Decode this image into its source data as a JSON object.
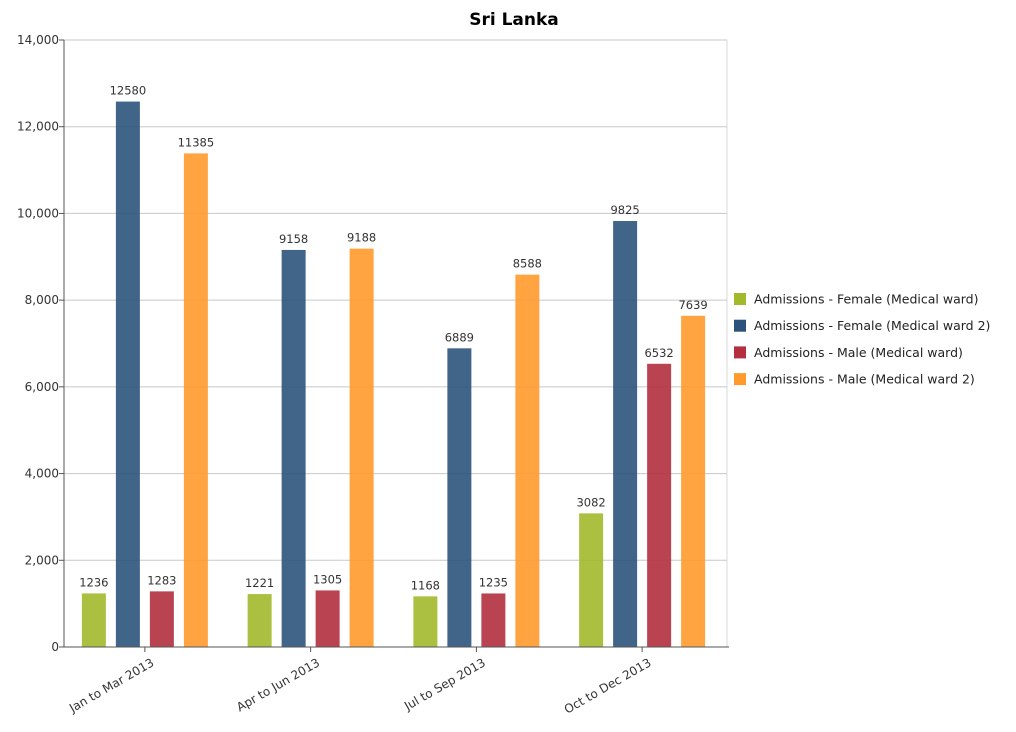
{
  "chart_data": {
    "type": "bar",
    "title": "Sri Lanka",
    "xlabel": "",
    "ylabel": "",
    "ylim": [
      0,
      14000
    ],
    "yticks": [
      0,
      2000,
      4000,
      6000,
      8000,
      10000,
      12000,
      14000
    ],
    "ytick_labels": [
      "0",
      "2,000",
      "4,000",
      "6,000",
      "8,000",
      "10,000",
      "12,000",
      "14,000"
    ],
    "grid": true,
    "legend_position": "right",
    "categories": [
      "Jan to Mar 2013",
      "Apr to Jun 2013",
      "Jul to Sep 2013",
      "Oct to Dec 2013"
    ],
    "series": [
      {
        "name": "Admissions - Female (Medical ward)",
        "color": "#a2b92b",
        "values": [
          1236,
          1221,
          1168,
          3082
        ],
        "labels": [
          "1236",
          "1221",
          "1168",
          "3082"
        ]
      },
      {
        "name": "Admissions - Female (Medical ward 2)",
        "color": "#2c537c",
        "values": [
          12580,
          9158,
          6889,
          9825
        ],
        "labels": [
          "12580",
          "9158",
          "6889",
          "9825"
        ]
      },
      {
        "name": "Admissions - Male (Medical ward)",
        "color": "#b32f3f",
        "values": [
          1283,
          1305,
          1235,
          6532
        ],
        "labels": [
          "1283",
          "1305",
          "1235",
          "6532"
        ]
      },
      {
        "name": "Admissions - Male (Medical ward 2)",
        "color": "#ff9a2c",
        "values": [
          11385,
          9188,
          8588,
          7639
        ],
        "labels": [
          "11385",
          "9188",
          "8588",
          "7639"
        ]
      }
    ]
  }
}
